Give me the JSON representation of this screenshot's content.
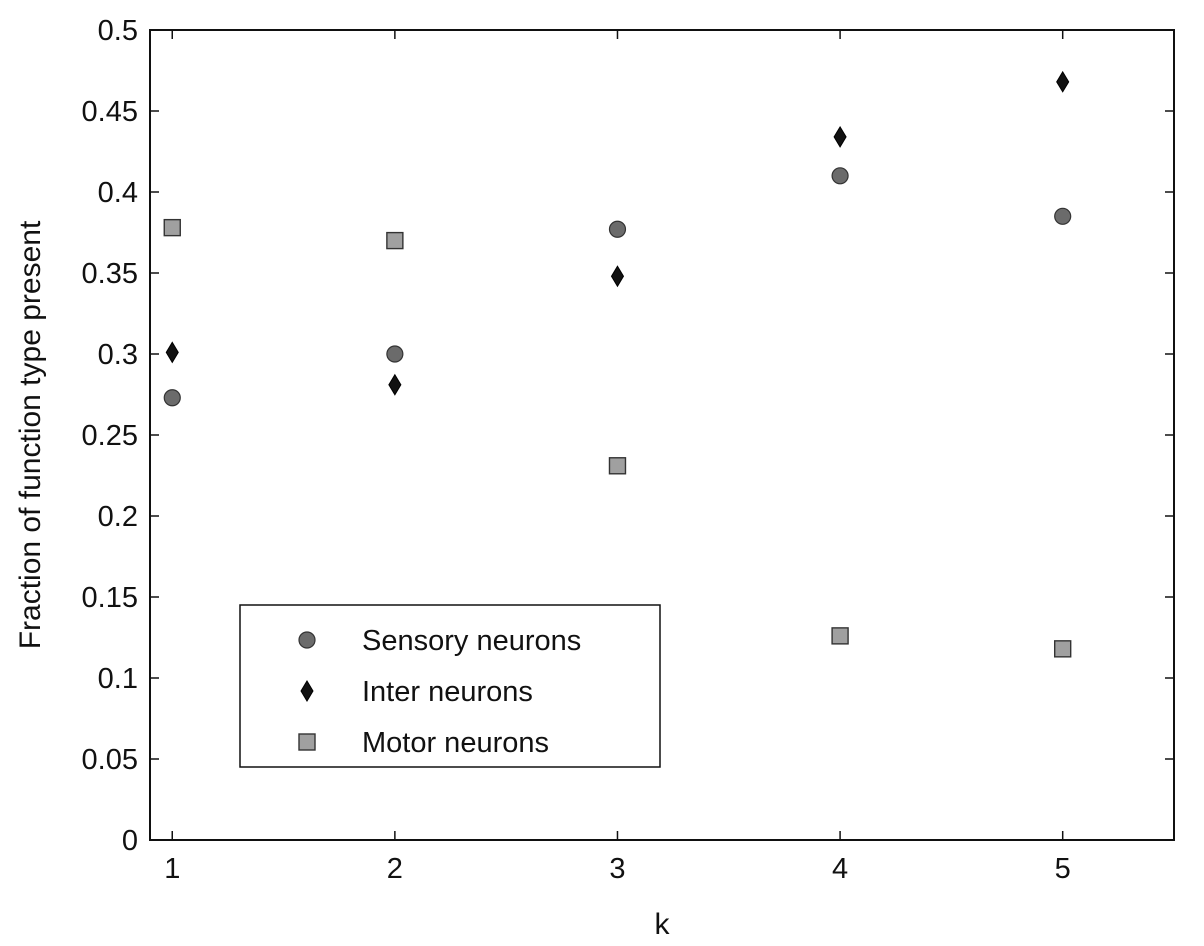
{
  "chart_data": {
    "type": "scatter",
    "xlabel": "k",
    "ylabel": "Fraction of function type present",
    "xlim": [
      0.9,
      5.5
    ],
    "ylim": [
      0,
      0.5
    ],
    "xticks": [
      "1",
      "2",
      "3",
      "4",
      "5"
    ],
    "yticks": [
      "0",
      "0.05",
      "0.1",
      "0.15",
      "0.2",
      "0.25",
      "0.3",
      "0.35",
      "0.4",
      "0.45",
      "0.5"
    ],
    "x": [
      1,
      2,
      3,
      4,
      5
    ],
    "series": [
      {
        "name": "Sensory neurons",
        "marker": "circle",
        "color": "#6b6b6b",
        "values": [
          0.273,
          0.3,
          0.377,
          0.41,
          0.385
        ]
      },
      {
        "name": "Inter neurons",
        "marker": "diamond",
        "color": "#111111",
        "values": [
          0.301,
          0.281,
          0.348,
          0.434,
          0.468
        ]
      },
      {
        "name": "Motor neurons",
        "marker": "square",
        "color": "#a0a0a0",
        "values": [
          0.378,
          0.37,
          0.231,
          0.126,
          0.118
        ]
      }
    ],
    "legend": {
      "position": "bottom-left"
    },
    "grid": false
  }
}
